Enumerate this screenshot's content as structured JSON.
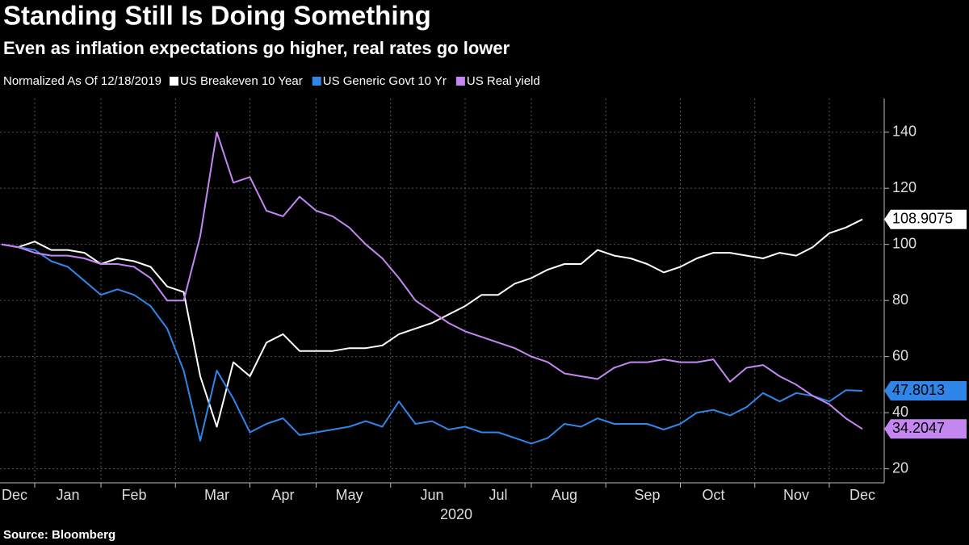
{
  "chart_data": {
    "type": "line",
    "title": "Standing Still Is Doing Something",
    "subtitle": "Even as inflation expectations go higher, real rates go lower",
    "legend_title": "Normalized As Of 12/18/2019",
    "x_label": "2020",
    "source": "Source: Bloomberg",
    "categories": [
      "Dec",
      null,
      null,
      null,
      "Jan",
      null,
      null,
      null,
      "Feb",
      null,
      null,
      null,
      null,
      "Mar",
      null,
      null,
      null,
      "Apr",
      null,
      null,
      null,
      "May",
      null,
      null,
      null,
      null,
      "Jun",
      null,
      null,
      null,
      "Jul",
      null,
      null,
      null,
      "Aug",
      null,
      null,
      null,
      null,
      "Sep",
      null,
      null,
      null,
      "Oct",
      null,
      null,
      null,
      null,
      "Nov",
      null,
      null,
      null,
      "Dec"
    ],
    "series": [
      {
        "name": "US Breakeven 10 Year",
        "color": "#ffffff",
        "values": [
          100,
          99,
          101,
          98,
          98,
          97,
          93,
          95,
          94,
          92,
          85,
          83,
          53,
          35,
          58,
          53,
          65,
          68,
          62,
          62,
          62,
          63,
          63,
          64,
          68,
          70,
          72,
          75,
          78,
          82,
          82,
          86,
          88,
          91,
          93,
          93,
          98,
          96,
          95,
          93,
          90,
          92,
          95,
          97,
          97,
          96,
          95,
          97,
          96,
          99,
          104,
          106,
          108.9075
        ]
      },
      {
        "name": "US Generic Govt 10 Yr",
        "color": "#2f86e8",
        "values": [
          100,
          99,
          98,
          94,
          92,
          87,
          82,
          84,
          82,
          78,
          70,
          55,
          30,
          55,
          45,
          33,
          36,
          38,
          32,
          33,
          34,
          35,
          37,
          35,
          44,
          36,
          37,
          34,
          35,
          33,
          33,
          31,
          29,
          31,
          36,
          35,
          38,
          36,
          36,
          36,
          34,
          36,
          40,
          41,
          39,
          42,
          47,
          44,
          47,
          46,
          44,
          48,
          47.8013
        ]
      },
      {
        "name": "US Real yield",
        "color": "#c487f2",
        "values": [
          100,
          99,
          97,
          96,
          96,
          95,
          93,
          93,
          92,
          88,
          80,
          80,
          103,
          140,
          122,
          124,
          112,
          110,
          117,
          112,
          110,
          106,
          100,
          95,
          88,
          80,
          76,
          72,
          69,
          67,
          65,
          63,
          60,
          58,
          54,
          53,
          52,
          56,
          58,
          58,
          59,
          58,
          58,
          59,
          51,
          56,
          57,
          53,
          50,
          46,
          43,
          38,
          34.2047
        ]
      }
    ],
    "ylim": [
      15,
      152
    ],
    "yticks": [
      20,
      40,
      60,
      80,
      100,
      120,
      140
    ],
    "grid": true
  }
}
